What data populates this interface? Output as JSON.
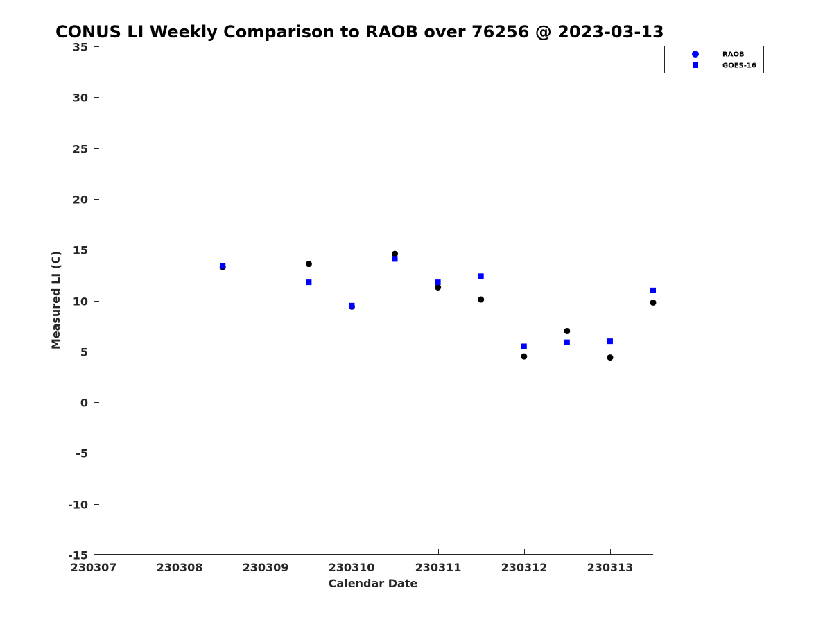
{
  "chart_data": {
    "type": "scatter",
    "title": "CONUS LI Weekly Comparison to RAOB over 76256 @ 2023-03-13",
    "xlabel": "Calendar Date",
    "ylabel": "Measured LI (C)",
    "xlim": [
      "2023-03-07",
      "2023-03-13T12:00"
    ],
    "ylim": [
      -15,
      35
    ],
    "x_ticks": [
      "230307",
      "230308",
      "230309",
      "230310",
      "230311",
      "230312",
      "230313"
    ],
    "y_ticks": [
      -15,
      -10,
      -5,
      0,
      5,
      10,
      15,
      20,
      25,
      30,
      35
    ],
    "grid": false,
    "legend_position": "top-right",
    "series": [
      {
        "name": "RAOB",
        "marker": "circle",
        "color": "#000000",
        "legend_color": "#0000ff",
        "points": [
          {
            "x": "2023-03-08T12:00",
            "y": 13.3
          },
          {
            "x": "2023-03-09T12:00",
            "y": 13.6
          },
          {
            "x": "2023-03-10T00:00",
            "y": 9.4
          },
          {
            "x": "2023-03-10T12:00",
            "y": 14.6
          },
          {
            "x": "2023-03-11T00:00",
            "y": 11.3
          },
          {
            "x": "2023-03-11T12:00",
            "y": 10.1
          },
          {
            "x": "2023-03-12T00:00",
            "y": 4.5
          },
          {
            "x": "2023-03-12T12:00",
            "y": 7.0
          },
          {
            "x": "2023-03-13T00:00",
            "y": 4.4
          },
          {
            "x": "2023-03-13T12:00",
            "y": 9.8
          }
        ]
      },
      {
        "name": "GOES-16",
        "marker": "square",
        "color": "#0000ff",
        "legend_color": "#0000ff",
        "points": [
          {
            "x": "2023-03-08T12:00",
            "y": 13.4
          },
          {
            "x": "2023-03-09T12:00",
            "y": 11.8
          },
          {
            "x": "2023-03-10T00:00",
            "y": 9.5
          },
          {
            "x": "2023-03-10T12:00",
            "y": 14.1
          },
          {
            "x": "2023-03-11T00:00",
            "y": 11.8
          },
          {
            "x": "2023-03-11T12:00",
            "y": 12.4
          },
          {
            "x": "2023-03-12T00:00",
            "y": 5.5
          },
          {
            "x": "2023-03-12T12:00",
            "y": 5.9
          },
          {
            "x": "2023-03-13T00:00",
            "y": 6.0
          },
          {
            "x": "2023-03-13T12:00",
            "y": 11.0
          }
        ]
      }
    ]
  }
}
